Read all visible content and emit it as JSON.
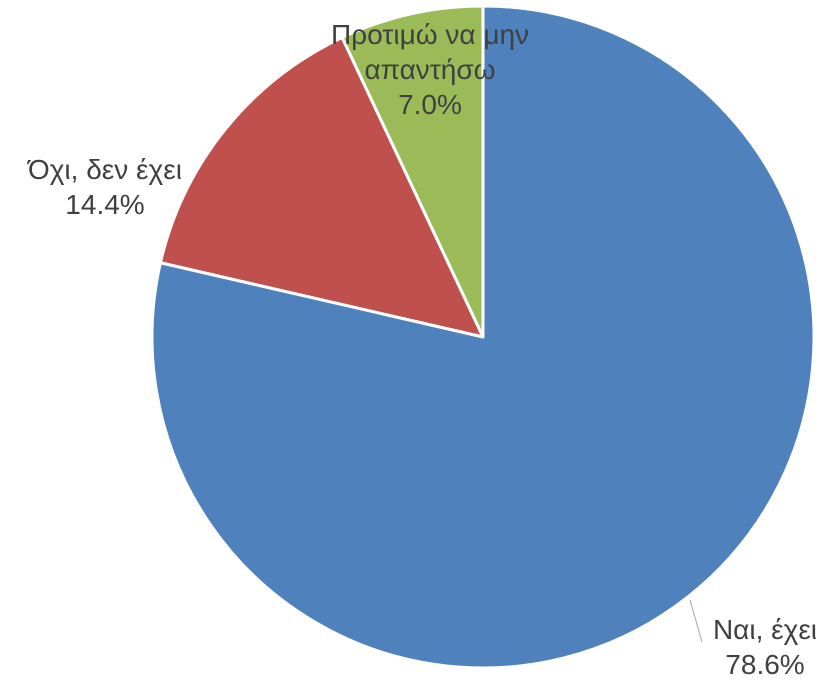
{
  "chart_data": {
    "type": "pie",
    "categories": [
      "Ναι, έχει",
      "Όχι, δεν έχει",
      "Προτιμώ να μην απαντήσω"
    ],
    "values": [
      78.6,
      14.4,
      7.0
    ],
    "value_labels": [
      "78.6%",
      "14.4%",
      "7.0%"
    ],
    "colors": [
      "#4f81bd",
      "#c0504d",
      "#9bbb59"
    ]
  }
}
